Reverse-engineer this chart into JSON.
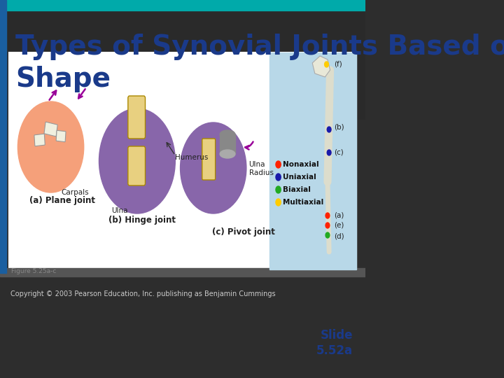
{
  "title": "Types of Synovial Joints Based on\nShape",
  "title_color": "#1a3a8a",
  "title_fontsize": 28,
  "bg_color": "#3a3a3a",
  "slide_bg": "#2d2d2d",
  "content_bg": "#ffffff",
  "teal_bar_color": "#00aaaa",
  "left_bar_color": "#1a5fa0",
  "footer_text": "Copyright © 2003 Pearson Education, Inc. publishing as Benjamin Cummings",
  "footer_color": "#cccccc",
  "slide_label": "Slide\n5.52a",
  "slide_label_color": "#1a3a8a",
  "figure_label": "Figure 5.25a-c",
  "figure_label_color": "#888888",
  "legend_items": [
    {
      "label": "Nonaxial",
      "color": "#ff2200"
    },
    {
      "label": "Uniaxial",
      "color": "#1a1aaa"
    },
    {
      "label": "Biaxial",
      "color": "#22aa22"
    },
    {
      "label": "Multiaxial",
      "color": "#ffcc00"
    }
  ]
}
